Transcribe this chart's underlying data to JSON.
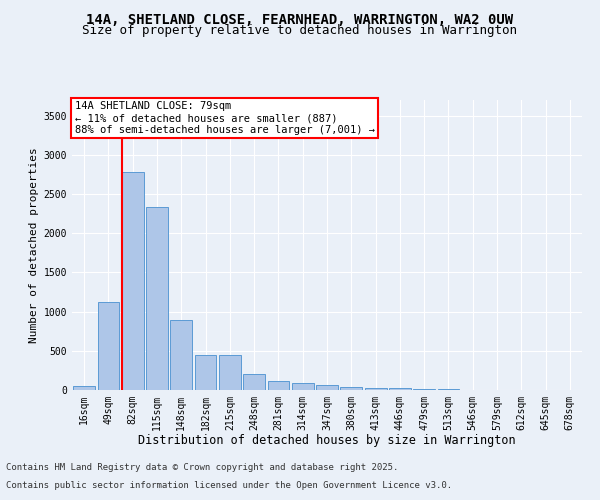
{
  "title": "14A, SHETLAND CLOSE, FEARNHEAD, WARRINGTON, WA2 0UW",
  "subtitle": "Size of property relative to detached houses in Warrington",
  "xlabel": "Distribution of detached houses by size in Warrington",
  "ylabel": "Number of detached properties",
  "categories": [
    "16sqm",
    "49sqm",
    "82sqm",
    "115sqm",
    "148sqm",
    "182sqm",
    "215sqm",
    "248sqm",
    "281sqm",
    "314sqm",
    "347sqm",
    "380sqm",
    "413sqm",
    "446sqm",
    "479sqm",
    "513sqm",
    "546sqm",
    "579sqm",
    "612sqm",
    "645sqm",
    "678sqm"
  ],
  "values": [
    50,
    1120,
    2780,
    2340,
    890,
    450,
    450,
    205,
    110,
    90,
    65,
    40,
    30,
    20,
    15,
    10,
    5,
    3,
    2,
    2,
    1
  ],
  "bar_color": "#aec6e8",
  "bar_edge_color": "#5b9bd5",
  "vline_color": "red",
  "annotation_text": "14A SHETLAND CLOSE: 79sqm\n← 11% of detached houses are smaller (887)\n88% of semi-detached houses are larger (7,001) →",
  "annotation_box_color": "white",
  "annotation_box_edge_color": "red",
  "ylim": [
    0,
    3700
  ],
  "yticks": [
    0,
    500,
    1000,
    1500,
    2000,
    2500,
    3000,
    3500
  ],
  "background_color": "#eaf0f8",
  "grid_color": "white",
  "footer_line1": "Contains HM Land Registry data © Crown copyright and database right 2025.",
  "footer_line2": "Contains public sector information licensed under the Open Government Licence v3.0.",
  "title_fontsize": 10,
  "subtitle_fontsize": 9,
  "xlabel_fontsize": 8.5,
  "ylabel_fontsize": 8,
  "tick_fontsize": 7,
  "footer_fontsize": 6.5,
  "annotation_fontsize": 7.5
}
